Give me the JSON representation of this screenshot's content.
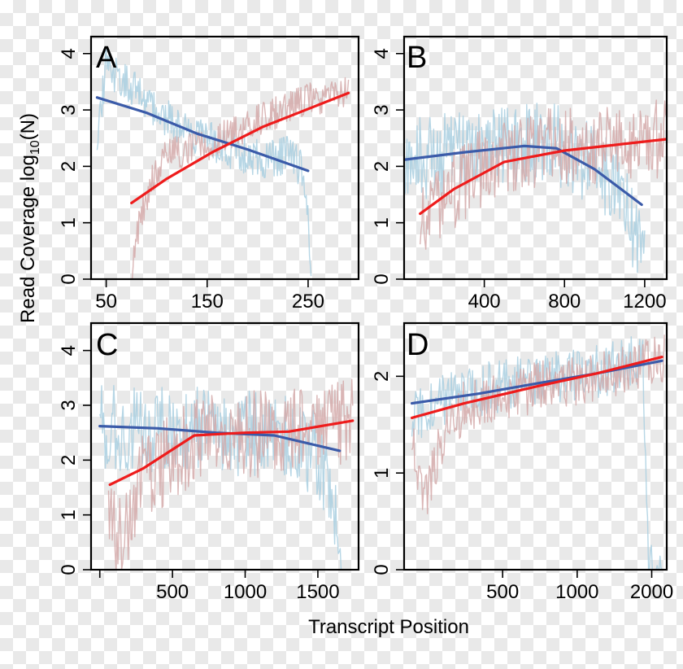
{
  "chart_data": [
    {
      "panel": "A",
      "type": "line",
      "xlim": [
        35,
        300
      ],
      "ylim": [
        0,
        4.3
      ],
      "x_ticks": [
        50,
        150,
        250
      ],
      "y_ticks": [
        0,
        1,
        2,
        3,
        4
      ],
      "x_scale": "linear",
      "series": [
        {
          "name": "blue-raw",
          "color": "#a9cfe0",
          "x_range": [
            41,
            253
          ],
          "y_anchors": [
            [
              41,
              2.5
            ],
            [
              50,
              3.8
            ],
            [
              80,
              3.3
            ],
            [
              120,
              2.7
            ],
            [
              170,
              2.3
            ],
            [
              210,
              2.1
            ],
            [
              232,
              2.2
            ],
            [
              244,
              1.9
            ],
            [
              249,
              1.3
            ],
            [
              253,
              0.3
            ]
          ],
          "noise": 0.35,
          "seed": 11
        },
        {
          "name": "red-raw",
          "color": "#d4a9a9",
          "x_range": [
            75,
            290
          ],
          "y_anchors": [
            [
              75,
              0.0
            ],
            [
              78,
              0.6
            ],
            [
              85,
              1.2
            ],
            [
              95,
              1.7
            ],
            [
              110,
              2.2
            ],
            [
              150,
              2.4
            ],
            [
              200,
              2.8
            ],
            [
              250,
              3.2
            ],
            [
              290,
              3.3
            ]
          ],
          "noise": 0.3,
          "seed": 12
        },
        {
          "name": "blue-trend",
          "color": "#3b5ba9",
          "x": [
            41,
            90,
            140,
            190,
            250
          ],
          "y": [
            3.22,
            2.95,
            2.58,
            2.3,
            1.92
          ]
        },
        {
          "name": "red-trend",
          "color": "#ee1c1c",
          "x": [
            75,
            110,
            155,
            205,
            290
          ],
          "y": [
            1.35,
            1.78,
            2.25,
            2.7,
            3.3
          ]
        }
      ]
    },
    {
      "panel": "B",
      "type": "line",
      "xlim": [
        0,
        1310
      ],
      "ylim": [
        0,
        4.3
      ],
      "x_ticks": [
        400,
        800,
        1200
      ],
      "y_ticks": [
        0,
        1,
        2,
        3,
        4
      ],
      "x_scale": "linear",
      "series": [
        {
          "name": "blue-raw",
          "color": "#a9cfe0",
          "x_range": [
            5,
            1200
          ],
          "y_anchors": [
            [
              5,
              2.1
            ],
            [
              400,
              2.3
            ],
            [
              750,
              2.4
            ],
            [
              950,
              2.0
            ],
            [
              1080,
              1.6
            ],
            [
              1150,
              0.8
            ],
            [
              1200,
              1.0
            ]
          ],
          "noise": 0.75,
          "seed": 21
        },
        {
          "name": "red-raw",
          "color": "#d4a9a9",
          "x_range": [
            80,
            1305
          ],
          "y_anchors": [
            [
              80,
              0.9
            ],
            [
              200,
              1.4
            ],
            [
              350,
              1.9
            ],
            [
              600,
              2.3
            ],
            [
              1000,
              2.4
            ],
            [
              1305,
              2.5
            ]
          ],
          "noise": 0.7,
          "seed": 22
        },
        {
          "name": "blue-trend",
          "color": "#3b5ba9",
          "x": [
            5,
            300,
            600,
            760,
            950,
            1185
          ],
          "y": [
            2.12,
            2.25,
            2.36,
            2.32,
            1.95,
            1.32
          ]
        },
        {
          "name": "red-trend",
          "color": "#ee1c1c",
          "x": [
            80,
            250,
            500,
            800,
            1050,
            1305
          ],
          "y": [
            1.16,
            1.6,
            2.08,
            2.28,
            2.38,
            2.48
          ]
        }
      ]
    },
    {
      "panel": "C",
      "type": "line",
      "xlim": [
        -60,
        1780
      ],
      "ylim": [
        0,
        4.5
      ],
      "x_ticks": [
        0,
        500,
        1000,
        1500
      ],
      "x_tick_labels": [
        "",
        "500",
        "1000",
        "1500"
      ],
      "y_ticks": [
        0,
        1,
        2,
        3,
        4
      ],
      "x_scale": "linear",
      "series": [
        {
          "name": "blue-raw",
          "color": "#a9cfe0",
          "x_range": [
            0,
            1660
          ],
          "y_anchors": [
            [
              0,
              2.6
            ],
            [
              300,
              2.6
            ],
            [
              900,
              2.5
            ],
            [
              1300,
              2.4
            ],
            [
              1500,
              2.1
            ],
            [
              1600,
              1.5
            ],
            [
              1660,
              0.2
            ]
          ],
          "noise": 0.8,
          "seed": 31
        },
        {
          "name": "red-raw",
          "color": "#d4a9a9",
          "x_range": [
            60,
            1740
          ],
          "y_anchors": [
            [
              60,
              0.9
            ],
            [
              130,
              0.5
            ],
            [
              300,
              1.7
            ],
            [
              700,
              2.4
            ],
            [
              1200,
              2.5
            ],
            [
              1740,
              2.7
            ]
          ],
          "noise": 0.8,
          "seed": 32
        },
        {
          "name": "blue-trend",
          "color": "#3b5ba9",
          "x": [
            0,
            400,
            800,
            1200,
            1650
          ],
          "y": [
            2.62,
            2.58,
            2.5,
            2.45,
            2.17
          ]
        },
        {
          "name": "red-trend",
          "color": "#ee1c1c",
          "x": [
            70,
            300,
            650,
            1000,
            1300,
            1740
          ],
          "y": [
            1.55,
            1.85,
            2.45,
            2.5,
            2.52,
            2.72
          ]
        }
      ]
    },
    {
      "panel": "D",
      "type": "line",
      "xlim": [
        200,
        2300
      ],
      "ylim": [
        0,
        2.55
      ],
      "x_ticks": [
        500,
        1000,
        2000
      ],
      "y_ticks": [
        0,
        1,
        2
      ],
      "x_scale": "log",
      "series": [
        {
          "name": "blue-raw",
          "color": "#a9cfe0",
          "x_range": [
            215,
            2200
          ],
          "y_anchors": [
            [
              215,
              1.55
            ],
            [
              300,
              1.8
            ],
            [
              600,
              1.95
            ],
            [
              1200,
              2.05
            ],
            [
              1700,
              2.15
            ],
            [
              1850,
              2.1
            ],
            [
              1900,
              0.9
            ],
            [
              1950,
              0.0
            ]
          ],
          "noise": 0.28,
          "seed": 41
        },
        {
          "name": "red-raw",
          "color": "#d4a9a9",
          "x_range": [
            215,
            2250
          ],
          "y_anchors": [
            [
              215,
              1.3
            ],
            [
              240,
              0.7
            ],
            [
              280,
              1.3
            ],
            [
              350,
              1.7
            ],
            [
              700,
              1.9
            ],
            [
              1500,
              2.05
            ],
            [
              2250,
              2.2
            ]
          ],
          "noise": 0.26,
          "seed": 42
        },
        {
          "name": "blue-trend",
          "color": "#3b5ba9",
          "x": [
            215,
            400,
            700,
            1200,
            2200
          ],
          "y": [
            1.72,
            1.82,
            1.93,
            2.03,
            2.16
          ]
        },
        {
          "name": "red-trend",
          "color": "#ee1c1c",
          "x": [
            215,
            350,
            700,
            1200,
            2200
          ],
          "y": [
            1.57,
            1.72,
            1.9,
            2.03,
            2.2
          ]
        }
      ]
    }
  ],
  "axes": {
    "y_title_prefix": "Read Coverage log",
    "y_title_subscript": "10",
    "y_title_suffix": "(N)",
    "x_title": "Transcript Position"
  },
  "panel_labels": [
    "A",
    "B",
    "C",
    "D"
  ]
}
